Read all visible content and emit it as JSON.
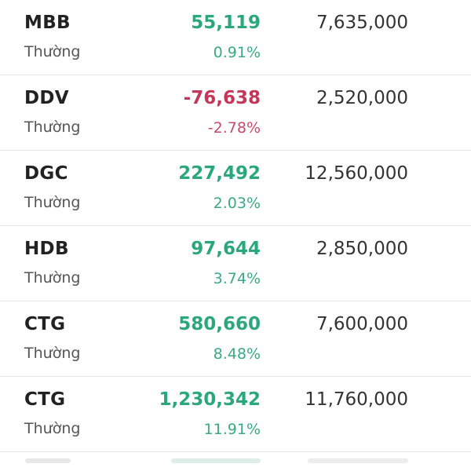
{
  "stocks": [
    {
      "symbol": "MBB",
      "type": "Thường",
      "change": "55,119",
      "percent": "0.91%",
      "volume": "7,635,000",
      "direction": "up"
    },
    {
      "symbol": "DDV",
      "type": "Thường",
      "change": "-76,638",
      "percent": "-2.78%",
      "volume": "2,520,000",
      "direction": "down"
    },
    {
      "symbol": "DGC",
      "type": "Thường",
      "change": "227,492",
      "percent": "2.03%",
      "volume": "12,560,000",
      "direction": "up"
    },
    {
      "symbol": "HDB",
      "type": "Thường",
      "change": "97,644",
      "percent": "3.74%",
      "volume": "2,850,000",
      "direction": "up"
    },
    {
      "symbol": "CTG",
      "type": "Thường",
      "change": "580,660",
      "percent": "8.48%",
      "volume": "7,600,000",
      "direction": "up"
    },
    {
      "symbol": "CTG",
      "type": "Thường",
      "change": "1,230,342",
      "percent": "11.91%",
      "volume": "11,760,000",
      "direction": "up"
    }
  ],
  "colors": {
    "up": "#2aa87c",
    "down": "#c4375a",
    "divider": "#e6e6e6"
  }
}
